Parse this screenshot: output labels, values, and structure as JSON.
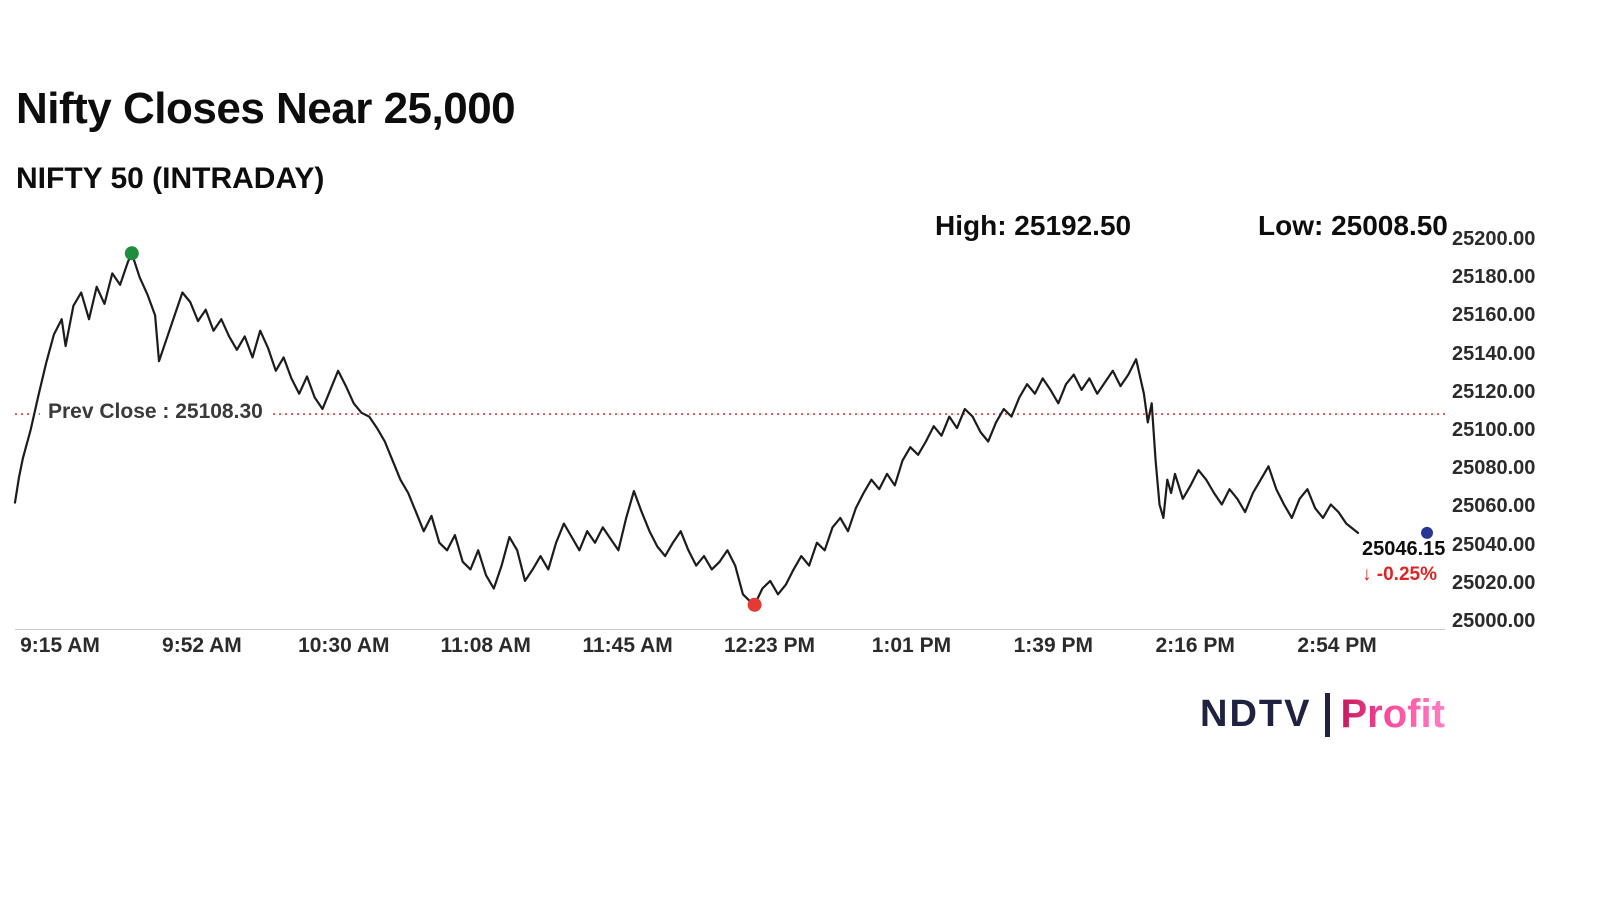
{
  "header": {
    "title": "Nifty Closes Near 25,000",
    "subtitle": "NIFTY 50 (INTRADAY)"
  },
  "stats": {
    "high_label": "High: 25192.50",
    "low_label": "Low: 25008.50"
  },
  "prev_close": {
    "label": "Prev Close : 25108.30",
    "value": 25108.3
  },
  "last": {
    "price": "25046.15",
    "change": "↓ -0.25%"
  },
  "branding": {
    "ndtv": "NDTV",
    "separator": "|",
    "profit": "Profit"
  },
  "colors": {
    "line": "#1c1c1c",
    "prev_close_line": "#e53935",
    "high_marker": "#1e8e3e",
    "low_marker": "#e53935",
    "last_marker": "#283593",
    "change_text": "#e02424",
    "profit_gradient_start": "#c2185b",
    "profit_gradient_end": "#ff7ec2"
  },
  "chart_data": {
    "type": "line",
    "title": "NIFTY 50 (INTRADAY)",
    "x_unit": "minutes since 09:15 AM",
    "xlim": [
      0,
      345
    ],
    "ylim": [
      25000,
      25200
    ],
    "grid": false,
    "legend": "none",
    "x_ticks": [
      "9:15 AM",
      "9:52 AM",
      "10:30 AM",
      "11:08 AM",
      "11:45 AM",
      "12:23 PM",
      "1:01 PM",
      "1:39 PM",
      "2:16 PM",
      "2:54 PM"
    ],
    "y_ticks": [
      "25200.00",
      "25180.00",
      "25160.00",
      "25140.00",
      "25120.00",
      "25100.00",
      "25080.00",
      "25060.00",
      "25040.00",
      "25020.00",
      "25000.00"
    ],
    "y_tick_values": [
      25200,
      25180,
      25160,
      25140,
      25120,
      25100,
      25080,
      25060,
      25040,
      25020,
      25000
    ],
    "prev_close": 25108.3,
    "high": 25192.5,
    "low": 25008.5,
    "last": 25046.15,
    "change_pct": -0.25,
    "markers": [
      {
        "type": "high",
        "t": 30,
        "v": 25192.5,
        "color": "#1e8e3e"
      },
      {
        "type": "low",
        "t": 190,
        "v": 25008.5,
        "color": "#e53935"
      },
      {
        "type": "last",
        "t": 345,
        "v": 25046.15,
        "color": "#283593"
      }
    ],
    "series": [
      {
        "name": "NIFTY 50",
        "points": [
          [
            0,
            25062
          ],
          [
            1,
            25075
          ],
          [
            2,
            25085
          ],
          [
            4,
            25100
          ],
          [
            6,
            25118
          ],
          [
            8,
            25135
          ],
          [
            10,
            25150
          ],
          [
            12,
            25158
          ],
          [
            13,
            25144
          ],
          [
            15,
            25165
          ],
          [
            17,
            25172
          ],
          [
            19,
            25158
          ],
          [
            21,
            25175
          ],
          [
            23,
            25166
          ],
          [
            25,
            25182
          ],
          [
            27,
            25176
          ],
          [
            29,
            25188
          ],
          [
            30,
            25192.5
          ],
          [
            32,
            25180
          ],
          [
            34,
            25171
          ],
          [
            36,
            25160
          ],
          [
            37,
            25136
          ],
          [
            39,
            25148
          ],
          [
            41,
            25160
          ],
          [
            43,
            25172
          ],
          [
            45,
            25167
          ],
          [
            47,
            25157
          ],
          [
            49,
            25163
          ],
          [
            51,
            25152
          ],
          [
            53,
            25158
          ],
          [
            55,
            25149
          ],
          [
            57,
            25142
          ],
          [
            59,
            25149
          ],
          [
            61,
            25138
          ],
          [
            63,
            25152
          ],
          [
            65,
            25143
          ],
          [
            67,
            25131
          ],
          [
            69,
            25138
          ],
          [
            71,
            25127
          ],
          [
            73,
            25119
          ],
          [
            75,
            25128
          ],
          [
            77,
            25117
          ],
          [
            79,
            25111
          ],
          [
            81,
            25121
          ],
          [
            83,
            25131
          ],
          [
            85,
            25123
          ],
          [
            87,
            25114
          ],
          [
            89,
            25109
          ],
          [
            91,
            25107
          ],
          [
            93,
            25101
          ],
          [
            95,
            25094
          ],
          [
            97,
            25084
          ],
          [
            99,
            25074
          ],
          [
            101,
            25067
          ],
          [
            103,
            25057
          ],
          [
            105,
            25047
          ],
          [
            107,
            25055
          ],
          [
            109,
            25041
          ],
          [
            111,
            25037
          ],
          [
            113,
            25045
          ],
          [
            115,
            25031
          ],
          [
            117,
            25027
          ],
          [
            119,
            25037
          ],
          [
            121,
            25024
          ],
          [
            123,
            25017
          ],
          [
            125,
            25029
          ],
          [
            127,
            25044
          ],
          [
            129,
            25037
          ],
          [
            131,
            25021
          ],
          [
            133,
            25027
          ],
          [
            135,
            25034
          ],
          [
            137,
            25027
          ],
          [
            139,
            25041
          ],
          [
            141,
            25051
          ],
          [
            143,
            25044
          ],
          [
            145,
            25037
          ],
          [
            147,
            25047
          ],
          [
            149,
            25041
          ],
          [
            151,
            25049
          ],
          [
            153,
            25043
          ],
          [
            155,
            25037
          ],
          [
            157,
            25054
          ],
          [
            159,
            25068
          ],
          [
            161,
            25057
          ],
          [
            163,
            25047
          ],
          [
            165,
            25039
          ],
          [
            167,
            25034
          ],
          [
            169,
            25041
          ],
          [
            171,
            25047
          ],
          [
            173,
            25037
          ],
          [
            175,
            25029
          ],
          [
            177,
            25034
          ],
          [
            179,
            25027
          ],
          [
            181,
            25031
          ],
          [
            183,
            25037
          ],
          [
            185,
            25029
          ],
          [
            187,
            25014
          ],
          [
            189,
            25010
          ],
          [
            190,
            25008.5
          ],
          [
            192,
            25017
          ],
          [
            194,
            25021
          ],
          [
            196,
            25014
          ],
          [
            198,
            25019
          ],
          [
            200,
            25027
          ],
          [
            202,
            25034
          ],
          [
            204,
            25029
          ],
          [
            206,
            25041
          ],
          [
            208,
            25037
          ],
          [
            210,
            25049
          ],
          [
            212,
            25054
          ],
          [
            214,
            25047
          ],
          [
            216,
            25059
          ],
          [
            218,
            25067
          ],
          [
            220,
            25074
          ],
          [
            222,
            25069
          ],
          [
            224,
            25077
          ],
          [
            226,
            25071
          ],
          [
            228,
            25084
          ],
          [
            230,
            25091
          ],
          [
            232,
            25087
          ],
          [
            234,
            25094
          ],
          [
            236,
            25102
          ],
          [
            238,
            25097
          ],
          [
            240,
            25107
          ],
          [
            242,
            25101
          ],
          [
            244,
            25111
          ],
          [
            246,
            25107
          ],
          [
            248,
            25099
          ],
          [
            250,
            25094
          ],
          [
            252,
            25104
          ],
          [
            254,
            25111
          ],
          [
            256,
            25107
          ],
          [
            258,
            25117
          ],
          [
            260,
            25124
          ],
          [
            262,
            25119
          ],
          [
            264,
            25127
          ],
          [
            266,
            25121
          ],
          [
            268,
            25114
          ],
          [
            270,
            25124
          ],
          [
            272,
            25129
          ],
          [
            274,
            25121
          ],
          [
            276,
            25127
          ],
          [
            278,
            25119
          ],
          [
            280,
            25125
          ],
          [
            282,
            25131
          ],
          [
            284,
            25123
          ],
          [
            286,
            25129
          ],
          [
            288,
            25137
          ],
          [
            290,
            25119
          ],
          [
            291,
            25104
          ],
          [
            292,
            25114
          ],
          [
            293,
            25084
          ],
          [
            294,
            25061
          ],
          [
            295,
            25054
          ],
          [
            296,
            25074
          ],
          [
            297,
            25067
          ],
          [
            298,
            25077
          ],
          [
            300,
            25064
          ],
          [
            302,
            25071
          ],
          [
            304,
            25079
          ],
          [
            306,
            25074
          ],
          [
            308,
            25067
          ],
          [
            310,
            25061
          ],
          [
            312,
            25069
          ],
          [
            314,
            25064
          ],
          [
            316,
            25057
          ],
          [
            318,
            25067
          ],
          [
            320,
            25074
          ],
          [
            322,
            25081
          ],
          [
            324,
            25069
          ],
          [
            326,
            25061
          ],
          [
            328,
            25054
          ],
          [
            330,
            25064
          ],
          [
            332,
            25069
          ],
          [
            334,
            25059
          ],
          [
            336,
            25054
          ],
          [
            338,
            25061
          ],
          [
            340,
            25057
          ],
          [
            342,
            25051
          ],
          [
            345,
            25046.15
          ]
        ]
      }
    ]
  }
}
